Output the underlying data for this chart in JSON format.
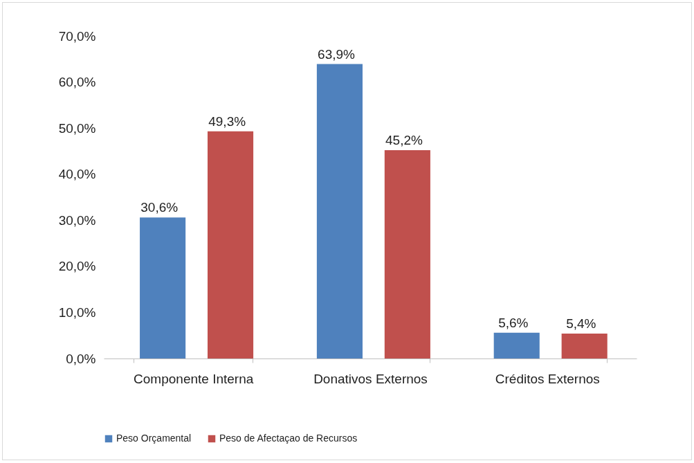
{
  "chart_data": {
    "type": "bar",
    "categories": [
      "Componente Interna",
      "Donativos Externos",
      "Créditos Externos"
    ],
    "series": [
      {
        "name": "Peso Orçamental",
        "color": "#4f81bd",
        "values": [
          30.6,
          63.9,
          5.6
        ],
        "value_labels": [
          "30,6%",
          "63,9%",
          "5,6%"
        ]
      },
      {
        "name": "Peso de Afectaçao de Recursos",
        "color": "#c0504d",
        "values": [
          49.3,
          45.2,
          5.4
        ],
        "value_labels": [
          "49,3%",
          "45,2%",
          "5,4%"
        ]
      }
    ],
    "ylim": [
      0,
      70
    ],
    "yticks": [
      {
        "value": 0,
        "label": "0,0%"
      },
      {
        "value": 10,
        "label": "10,0%"
      },
      {
        "value": 20,
        "label": "20,0%"
      },
      {
        "value": 30,
        "label": "30,0%"
      },
      {
        "value": 40,
        "label": "40,0%"
      },
      {
        "value": 50,
        "label": "50,0%"
      },
      {
        "value": 60,
        "label": "60,0%"
      },
      {
        "value": 70,
        "label": "70,0%"
      }
    ],
    "grid": false,
    "legend": "bottom"
  }
}
